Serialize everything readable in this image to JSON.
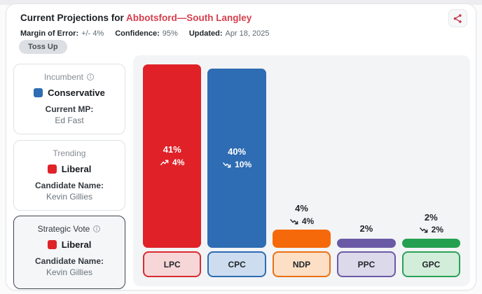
{
  "header": {
    "title_prefix": "Current Projections for",
    "riding_name": "Abbotsford—South Langley",
    "riding_color": "#d63e4e",
    "meta": [
      {
        "label": "Margin of Error:",
        "value": "+/- 4%"
      },
      {
        "label": "Confidence:",
        "value": "95%"
      },
      {
        "label": "Updated:",
        "value": "Apr 18, 2025"
      }
    ],
    "status_badge": "Toss Up",
    "share_icon": "share-icon",
    "share_icon_color": "#c53b4e"
  },
  "sidebar": {
    "cards": [
      {
        "title": "Incumbent",
        "info_icon": true,
        "party": "Conservative",
        "party_color": "#2e6cb3",
        "detail_label": "Current MP:",
        "detail_value": "Ed Fast",
        "highlighted": false
      },
      {
        "title": "Trending",
        "info_icon": false,
        "party": "Liberal",
        "party_color": "#df2328",
        "detail_label": "Candidate Name:",
        "detail_value": "Kevin Gillies",
        "highlighted": false
      },
      {
        "title": "Strategic Vote",
        "info_icon": true,
        "party": "Liberal",
        "party_color": "#df2328",
        "detail_label": "Candidate Name:",
        "detail_value": "Kevin Gillies",
        "highlighted": true
      }
    ]
  },
  "chart_data": {
    "type": "bar",
    "title": "",
    "xlabel": "",
    "ylabel": "",
    "categories": [
      "LPC",
      "CPC",
      "NDP",
      "PPC",
      "GPC"
    ],
    "values": [
      41,
      40,
      4,
      2,
      2
    ],
    "display_values": [
      "41%",
      "40%",
      "4%",
      "2%",
      "2%"
    ],
    "trends": [
      {
        "direction": "up",
        "label": "4%"
      },
      {
        "direction": "down",
        "label": "10%"
      },
      {
        "direction": "down",
        "label": "4%"
      },
      null,
      {
        "direction": "down",
        "label": "2%"
      }
    ],
    "bar_colors": [
      "#e02128",
      "#2e6cb3",
      "#f6690a",
      "#6a5aa5",
      "#23a04f"
    ],
    "tag_bg_colors": [
      "#f7d6d8",
      "#cdddef",
      "#fcdfc5",
      "#dcd9ea",
      "#d2edda"
    ],
    "tag_border_colors": [
      "#d92b31",
      "#2e6cb3",
      "#ec7014",
      "#6a5aa5",
      "#2aa257"
    ],
    "ylim": [
      0,
      43
    ],
    "grid": false,
    "legend": false,
    "inside_label_threshold": 10,
    "bar_label_color_inside": "#ffffff",
    "bar_label_color_outside": "#212529"
  }
}
